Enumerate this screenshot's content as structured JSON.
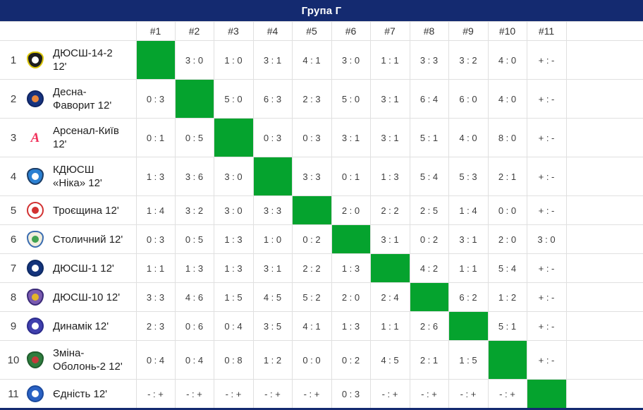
{
  "title": "Група Г",
  "colors": {
    "header_bg": "#142a70",
    "diagonal_green": "#05a32e",
    "grid_line": "#e0e0e0"
  },
  "table": {
    "columns": [
      "#1",
      "#2",
      "#3",
      "#4",
      "#5",
      "#6",
      "#7",
      "#8",
      "#9",
      "#10",
      "#11"
    ],
    "teams": [
      {
        "num": "1",
        "name": "ДЮСШ-14-2 12'",
        "icon": "team-badge-dyussh-14-2",
        "badge": {
          "type": "shield",
          "bg": "#1d1d1d",
          "border": "#d9c50a",
          "inner": "#ffffff"
        }
      },
      {
        "num": "2",
        "name": "Десна-Фаворит 12'",
        "icon": "team-badge-desna-favoryt",
        "badge": {
          "type": "circle",
          "bg": "#16337f",
          "border": "#0e2361",
          "inner": "#e9863c"
        }
      },
      {
        "num": "3",
        "name": "Арсенал-Київ 12'",
        "icon": "team-badge-arsenal-kyiv",
        "badge": {
          "type": "glyph",
          "glyph": "А",
          "bg": "#ffffff",
          "border": "#ffffff",
          "inner": "#f0305a",
          "color": "#f0305a"
        }
      },
      {
        "num": "4",
        "name": "КДЮСШ «Ніка» 12'",
        "icon": "team-badge-kdyussh-nika",
        "badge": {
          "type": "shield",
          "bg": "#2b80d2",
          "border": "#1c3d66",
          "inner": "#ffffff"
        }
      },
      {
        "num": "5",
        "name": "Троєщина 12'",
        "icon": "team-badge-troieshchyna",
        "badge": {
          "type": "circle",
          "bg": "#ffffff",
          "border": "#d23131",
          "inner": "#d23131"
        }
      },
      {
        "num": "6",
        "name": "Столичний 12'",
        "icon": "team-badge-stolychnyi",
        "badge": {
          "type": "shield",
          "bg": "#f1eedd",
          "border": "#3a6cb0",
          "inner": "#41a350"
        }
      },
      {
        "num": "7",
        "name": "ДЮСШ-1 12'",
        "icon": "team-badge-dyussh-1",
        "badge": {
          "type": "circle",
          "bg": "#14347c",
          "border": "#0d2a64",
          "inner": "#ffffff"
        }
      },
      {
        "num": "8",
        "name": "ДЮСШ-10 12'",
        "icon": "team-badge-dyussh-10",
        "badge": {
          "type": "shield",
          "bg": "#7a5ab0",
          "border": "#3a2a78",
          "inner": "#e3b52a"
        }
      },
      {
        "num": "9",
        "name": "Динамік 12'",
        "icon": "team-badge-dynamik",
        "badge": {
          "type": "circle",
          "bg": "#4040ae",
          "border": "#2b2b8c",
          "inner": "#ffffff"
        }
      },
      {
        "num": "10",
        "name": "Зміна-Оболонь-2 12'",
        "icon": "team-badge-zmina-obolon-2",
        "badge": {
          "type": "shield",
          "bg": "#2e7d3e",
          "border": "#1f5c2c",
          "inner": "#c23a3a"
        }
      },
      {
        "num": "11",
        "name": "Єдність 12'",
        "icon": "team-badge-yednist",
        "badge": {
          "type": "circle",
          "bg": "#2a62c4",
          "border": "#1b4a9e",
          "inner": "#ffffff"
        }
      }
    ],
    "results": [
      [
        null,
        "3 : 0",
        "1 : 0",
        "3 : 1",
        "4 : 1",
        "3 : 0",
        "1 : 1",
        "3 : 3",
        "3 : 2",
        "4 : 0",
        "+ : -"
      ],
      [
        "0 : 3",
        null,
        "5 : 0",
        "6 : 3",
        "2 : 3",
        "5 : 0",
        "3 : 1",
        "6 : 4",
        "6 : 0",
        "4 : 0",
        "+ : -"
      ],
      [
        "0 : 1",
        "0 : 5",
        null,
        "0 : 3",
        "0 : 3",
        "3 : 1",
        "3 : 1",
        "5 : 1",
        "4 : 0",
        "8 : 0",
        "+ : -"
      ],
      [
        "1 : 3",
        "3 : 6",
        "3 : 0",
        null,
        "3 : 3",
        "0 : 1",
        "1 : 3",
        "5 : 4",
        "5 : 3",
        "2 : 1",
        "+ : -"
      ],
      [
        "1 : 4",
        "3 : 2",
        "3 : 0",
        "3 : 3",
        null,
        "2 : 0",
        "2 : 2",
        "2 : 5",
        "1 : 4",
        "0 : 0",
        "+ : -"
      ],
      [
        "0 : 3",
        "0 : 5",
        "1 : 3",
        "1 : 0",
        "0 : 2",
        null,
        "3 : 1",
        "0 : 2",
        "3 : 1",
        "2 : 0",
        "3 : 0"
      ],
      [
        "1 : 1",
        "1 : 3",
        "1 : 3",
        "3 : 1",
        "2 : 2",
        "1 : 3",
        null,
        "4 : 2",
        "1 : 1",
        "5 : 4",
        "+ : -"
      ],
      [
        "3 : 3",
        "4 : 6",
        "1 : 5",
        "4 : 5",
        "5 : 2",
        "2 : 0",
        "2 : 4",
        null,
        "6 : 2",
        "1 : 2",
        "+ : -"
      ],
      [
        "2 : 3",
        "0 : 6",
        "0 : 4",
        "3 : 5",
        "4 : 1",
        "1 : 3",
        "1 : 1",
        "2 : 6",
        null,
        "5 : 1",
        "+ : -"
      ],
      [
        "0 : 4",
        "0 : 4",
        "0 : 8",
        "1 : 2",
        "0 : 0",
        "0 : 2",
        "4 : 5",
        "2 : 1",
        "1 : 5",
        null,
        "+ : -"
      ],
      [
        "- : +",
        "- : +",
        "- : +",
        "- : +",
        "- : +",
        "0 : 3",
        "- : +",
        "- : +",
        "- : +",
        "- : +",
        null
      ]
    ]
  }
}
